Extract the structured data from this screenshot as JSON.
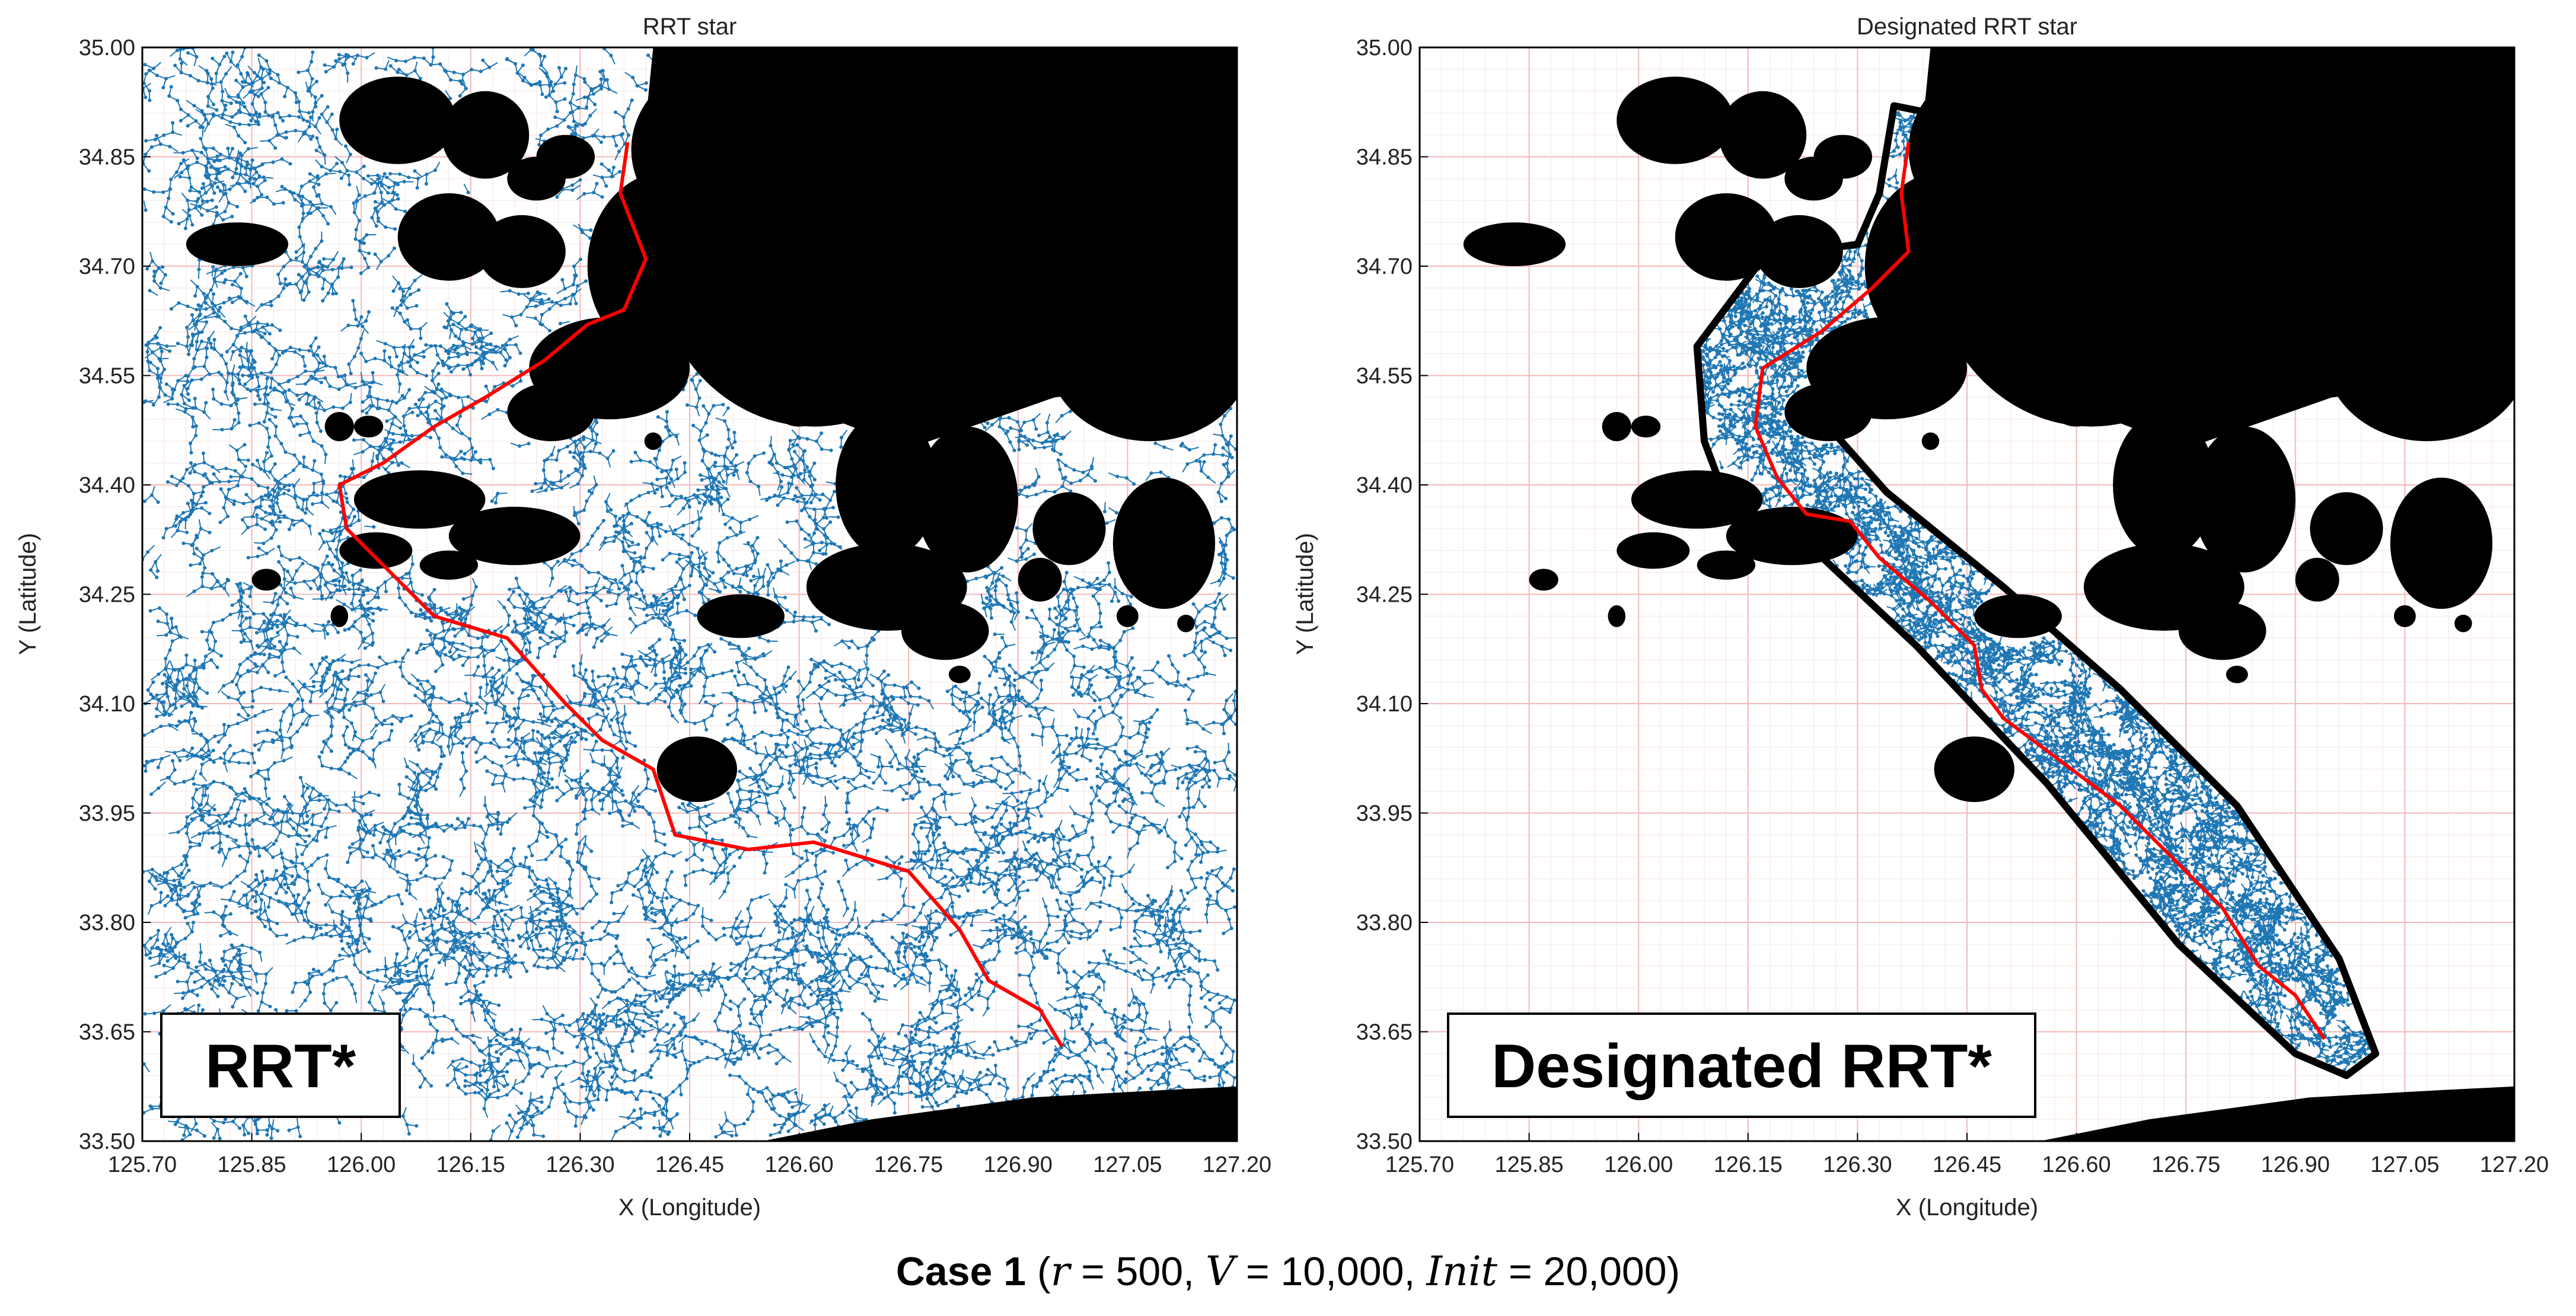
{
  "chart_data": [
    {
      "type": "scatter",
      "title": "RRT star",
      "xlabel": "X (Longitude)",
      "ylabel": "Y (Latitude)",
      "xlim": [
        125.7,
        127.2
      ],
      "ylim": [
        33.5,
        35.0
      ],
      "xticks": [
        "125.70",
        "125.85",
        "126.00",
        "126.15",
        "126.30",
        "126.45",
        "126.60",
        "126.75",
        "126.90",
        "127.05",
        "127.20"
      ],
      "yticks": [
        "33.50",
        "33.65",
        "33.80",
        "33.95",
        "34.10",
        "34.25",
        "34.40",
        "34.55",
        "34.70",
        "34.85",
        "35.00"
      ],
      "grid": true,
      "tag": "RRT*",
      "tree_color": "#1f77b4",
      "path_color": "#ff0000",
      "obstacle_color": "#000000",
      "path": [
        [
          126.365,
          34.87
        ],
        [
          126.355,
          34.8
        ],
        [
          126.39,
          34.71
        ],
        [
          126.36,
          34.64
        ],
        [
          126.31,
          34.62
        ],
        [
          126.25,
          34.57
        ],
        [
          126.17,
          34.52
        ],
        [
          126.1,
          34.48
        ],
        [
          126.03,
          34.43
        ],
        [
          125.97,
          34.4
        ],
        [
          125.98,
          34.34
        ],
        [
          126.03,
          34.29
        ],
        [
          126.1,
          34.22
        ],
        [
          126.2,
          34.19
        ],
        [
          126.28,
          34.1
        ],
        [
          126.33,
          34.05
        ],
        [
          126.4,
          34.01
        ],
        [
          126.43,
          33.92
        ],
        [
          126.53,
          33.9
        ],
        [
          126.62,
          33.91
        ],
        [
          126.75,
          33.87
        ],
        [
          126.82,
          33.79
        ],
        [
          126.86,
          33.72
        ],
        [
          126.93,
          33.68
        ],
        [
          126.96,
          33.63
        ]
      ],
      "tree_region": "full",
      "caption_case": "Case 1",
      "caption_vars": {
        "r": "500",
        "V": "10,000",
        "Init": "20,000"
      }
    },
    {
      "type": "scatter",
      "title": "Designated RRT star",
      "xlabel": "X (Longitude)",
      "ylabel": "Y (Latitude)",
      "xlim": [
        125.7,
        127.2
      ],
      "ylim": [
        33.5,
        35.0
      ],
      "xticks": [
        "125.70",
        "125.85",
        "126.00",
        "126.15",
        "126.30",
        "126.45",
        "126.60",
        "126.75",
        "126.90",
        "127.05",
        "127.20"
      ],
      "yticks": [
        "33.50",
        "33.65",
        "33.80",
        "33.95",
        "34.10",
        "34.25",
        "34.40",
        "34.55",
        "34.70",
        "34.85",
        "35.00"
      ],
      "grid": true,
      "tag": "Designated RRT*",
      "tree_color": "#1f77b4",
      "path_color": "#ff0000",
      "obstacle_color": "#000000",
      "path": [
        [
          126.37,
          34.87
        ],
        [
          126.36,
          34.8
        ],
        [
          126.37,
          34.72
        ],
        [
          126.32,
          34.67
        ],
        [
          126.25,
          34.61
        ],
        [
          126.17,
          34.56
        ],
        [
          126.16,
          34.48
        ],
        [
          126.19,
          34.41
        ],
        [
          126.23,
          34.36
        ],
        [
          126.29,
          34.35
        ],
        [
          126.33,
          34.3
        ],
        [
          126.4,
          34.24
        ],
        [
          126.46,
          34.18
        ],
        [
          126.47,
          34.12
        ],
        [
          126.5,
          34.08
        ],
        [
          126.58,
          34.02
        ],
        [
          126.66,
          33.96
        ],
        [
          126.73,
          33.89
        ],
        [
          126.8,
          33.82
        ],
        [
          126.85,
          33.74
        ],
        [
          126.9,
          33.7
        ],
        [
          126.94,
          33.64
        ]
      ],
      "corridor": [
        [
          126.35,
          34.92
        ],
        [
          126.4,
          34.91
        ],
        [
          126.42,
          34.78
        ],
        [
          126.42,
          34.68
        ],
        [
          126.35,
          34.63
        ],
        [
          126.26,
          34.48
        ],
        [
          126.34,
          34.39
        ],
        [
          126.5,
          34.26
        ],
        [
          126.66,
          34.12
        ],
        [
          126.82,
          33.96
        ],
        [
          126.96,
          33.75
        ],
        [
          127.01,
          33.62
        ],
        [
          126.97,
          33.59
        ],
        [
          126.9,
          33.62
        ],
        [
          126.74,
          33.77
        ],
        [
          126.56,
          33.99
        ],
        [
          126.38,
          34.18
        ],
        [
          126.22,
          34.33
        ],
        [
          126.12,
          34.38
        ],
        [
          126.09,
          34.46
        ],
        [
          126.08,
          34.59
        ],
        [
          126.17,
          34.71
        ],
        [
          126.23,
          34.72
        ],
        [
          126.3,
          34.73
        ],
        [
          126.33,
          34.8
        ]
      ],
      "tree_region": "corridor"
    }
  ],
  "caption": {
    "case": "Case 1",
    "open_paren": "(",
    "r_sym": "r",
    "r_val": " = 500, ",
    "v_sym": "V",
    "v_val": " = 10,000, ",
    "init_sym": "Init",
    "init_val": " = 20,000)"
  }
}
